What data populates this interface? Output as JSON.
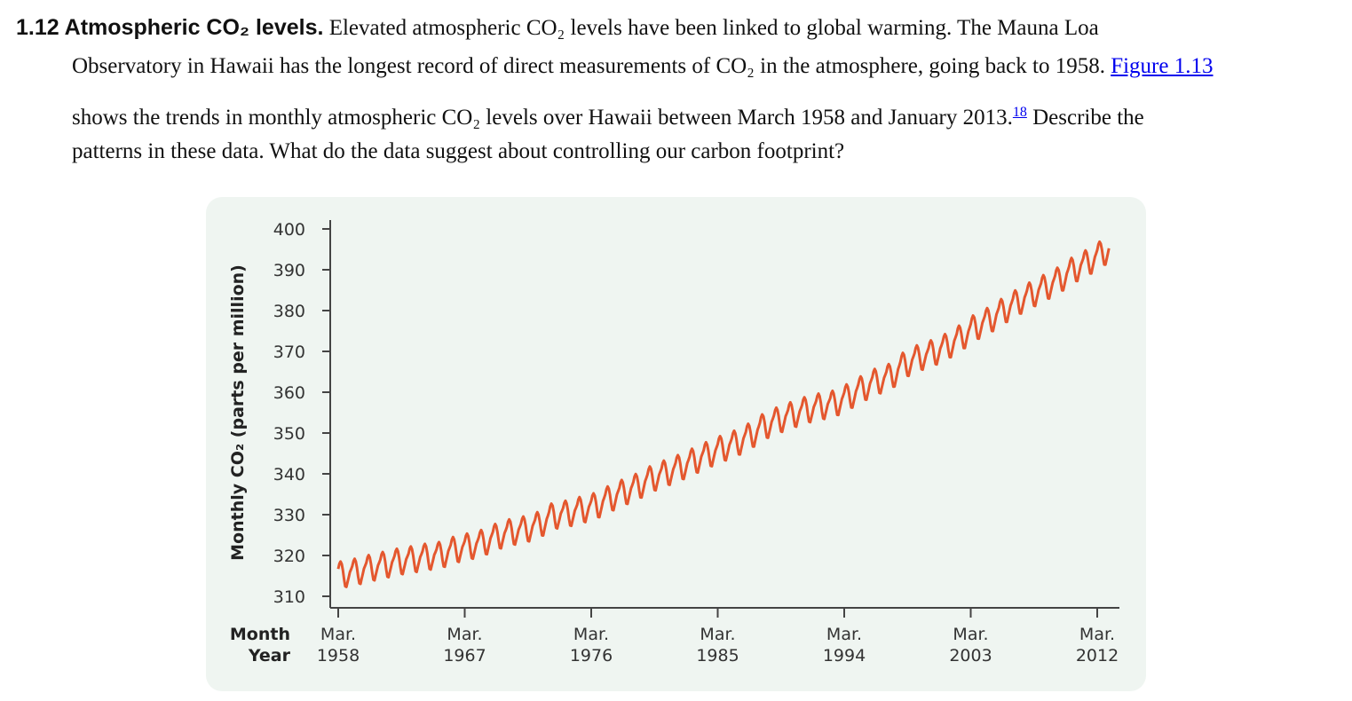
{
  "exercise": {
    "heading": "1.12 Atmospheric CO₂ levels.",
    "line1": " Elevated atmospheric CO₂ levels have been linked to global warming. The Mauna Loa",
    "line2": "Observatory in Hawaii has the longest record of direct measurements of CO₂ in the atmosphere, going back to 1958. ",
    "figure_link": "Figure 1.13",
    "line3": "shows the trends in monthly atmospheric CO₂ levels over Hawaii between March 1958 and January 2013.",
    "footnote": "18",
    "line3_end": " Describe the",
    "line4": "patterns in these data. What do the data suggest about controlling our carbon footprint?"
  },
  "chart_data": {
    "type": "line",
    "ylabel": "Monthly CO₂ (parts per million)",
    "xlabel_rows": [
      "Month",
      "Year"
    ],
    "ylim": [
      310,
      400
    ],
    "yticks": [
      "400",
      "390",
      "380",
      "370",
      "360",
      "350",
      "340",
      "330",
      "320",
      "310"
    ],
    "xticks": [
      {
        "month": "Mar.",
        "year": "1958"
      },
      {
        "month": "Mar.",
        "year": "1967"
      },
      {
        "month": "Mar.",
        "year": "1976"
      },
      {
        "month": "Mar.",
        "year": "1985"
      },
      {
        "month": "Mar.",
        "year": "1994"
      },
      {
        "month": "Mar.",
        "year": "2003"
      },
      {
        "month": "Mar.",
        "year": "2012"
      }
    ],
    "x_range": [
      "1958-03",
      "2013-01"
    ],
    "line_color": "#e4572e",
    "grid": false,
    "annual_mean_ppm": {
      "1958": 315.3,
      "1959": 315.97,
      "1960": 316.91,
      "1961": 317.64,
      "1962": 318.45,
      "1963": 318.99,
      "1964": 319.62,
      "1965": 320.04,
      "1966": 321.38,
      "1967": 322.16,
      "1968": 323.04,
      "1969": 324.62,
      "1970": 325.68,
      "1971": 326.32,
      "1972": 327.45,
      "1973": 329.68,
      "1974": 330.18,
      "1975": 331.11,
      "1976": 332.04,
      "1977": 333.83,
      "1978": 335.4,
      "1979": 336.84,
      "1980": 338.75,
      "1981": 340.11,
      "1982": 341.45,
      "1983": 343.05,
      "1984": 344.65,
      "1985": 346.12,
      "1986": 347.42,
      "1987": 349.19,
      "1988": 351.57,
      "1989": 353.12,
      "1990": 354.39,
      "1991": 355.61,
      "1992": 356.45,
      "1993": 357.1,
      "1994": 358.83,
      "1995": 360.82,
      "1996": 362.61,
      "1997": 363.73,
      "1998": 366.7,
      "1999": 368.38,
      "2000": 369.55,
      "2001": 371.14,
      "2002": 373.28,
      "2003": 375.8,
      "2004": 377.52,
      "2005": 379.8,
      "2006": 381.9,
      "2007": 383.79,
      "2008": 385.6,
      "2009": 387.43,
      "2010": 389.9,
      "2011": 391.65,
      "2012": 393.85,
      "2013": 395.9
    },
    "seasonal_offset_ppm_by_month": [
      0.3,
      0.9,
      1.6,
      2.8,
      3.3,
      2.6,
      1.0,
      -1.2,
      -3.0,
      -3.2,
      -2.0,
      -0.9
    ]
  }
}
